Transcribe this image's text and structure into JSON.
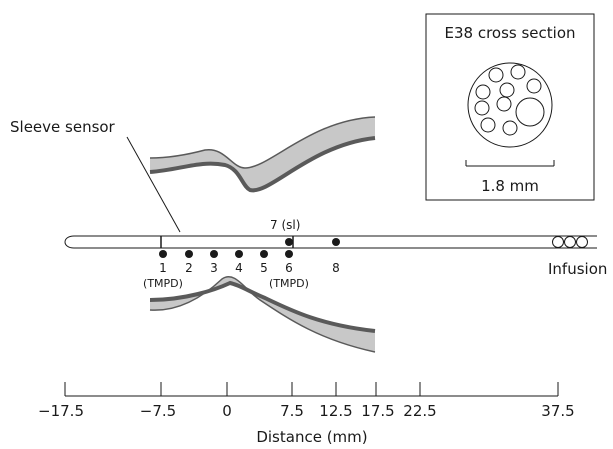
{
  "diagram": {
    "sleeve_label": "Sleeve sensor",
    "infusion_label": "Infusion",
    "sensor_label_7": "7 (sl)",
    "ports": [
      {
        "num": "1",
        "sub": "(TMPD)"
      },
      {
        "num": "2",
        "sub": ""
      },
      {
        "num": "3",
        "sub": ""
      },
      {
        "num": "4",
        "sub": ""
      },
      {
        "num": "5",
        "sub": ""
      },
      {
        "num": "6",
        "sub": "(TMPD)"
      },
      {
        "num": "8",
        "sub": ""
      }
    ],
    "cross_section": {
      "title": "E38 cross section",
      "scale_label": "1.8 mm"
    },
    "axis": {
      "title": "Distance (mm)",
      "ticks": [
        "−17.5",
        "−7.5",
        "0",
        "7.5",
        "12.5",
        "17.5",
        "22.5",
        "37.5"
      ]
    },
    "colors": {
      "sphincter_fill": "#c8c8c8",
      "sphincter_stroke": "#5a5a5a",
      "line": "#1a1a1a"
    }
  }
}
